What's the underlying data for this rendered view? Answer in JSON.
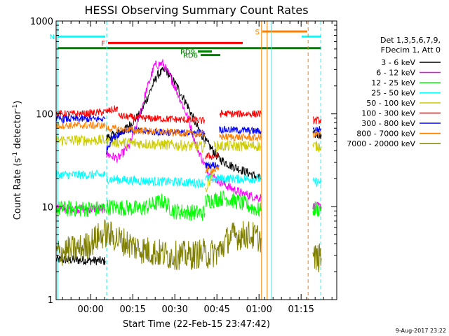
{
  "chart_data": {
    "type": "line",
    "title": "HESSI Observing Summary Count Rates",
    "xlabel": "Start Time (22-Feb-15 23:47:42)",
    "ylabel_main": "Count Rate (s",
    "ylabel_sup1": "-1",
    "ylabel_mid": " detector",
    "ylabel_sup2": "-1",
    "ylabel_end": ")",
    "x_unit": "minutes since 23:47:42",
    "x_range": [
      0,
      100
    ],
    "y_scale": "log",
    "y_range": [
      1,
      1000
    ],
    "x_ticks": [
      {
        "minute": 12.3,
        "label": "00:00"
      },
      {
        "minute": 27.3,
        "label": "00:15"
      },
      {
        "minute": 42.3,
        "label": "00:30"
      },
      {
        "minute": 57.3,
        "label": "00:45"
      },
      {
        "minute": 72.3,
        "label": "01:00"
      },
      {
        "minute": 87.3,
        "label": "01:15"
      }
    ],
    "y_ticks": [
      {
        "value": 1,
        "label": "1"
      },
      {
        "value": 10,
        "label": "10"
      },
      {
        "value": 100,
        "label": "100"
      },
      {
        "value": 1000,
        "label": "1000"
      }
    ],
    "legend": {
      "placement": "right",
      "header": [
        "Det 1,3,5,6,7,9,",
        "FDecim 1, Att 0"
      ],
      "entries": [
        {
          "label": "3 - 6 keV",
          "color": "#000000"
        },
        {
          "label": "6 - 12 keV",
          "color": "#ff00ff"
        },
        {
          "label": "12 - 25 keV",
          "color": "#00ff00"
        },
        {
          "label": "25 - 50 keV",
          "color": "#00ffff"
        },
        {
          "label": "50 - 100 keV",
          "color": "#cccc00"
        },
        {
          "label": "100 - 300 keV",
          "color": "#ff0000"
        },
        {
          "label": "300 - 800 keV",
          "color": "#0000ff"
        },
        {
          "label": "800 - 7000 keV",
          "color": "#ff8000"
        },
        {
          "label": "7000 - 20000 keV",
          "color": "#808000"
        }
      ]
    },
    "flags": [
      {
        "label": "N",
        "color": "#00ffff",
        "start": 0.5,
        "end": 17.5,
        "level": 680
      },
      {
        "label": "F",
        "color": "#ff0000",
        "start": 18.5,
        "end": 66.5,
        "level": 580
      },
      {
        "label": "S",
        "color": "#ff8000",
        "start": 73.5,
        "end": 89.5,
        "level": 770
      },
      {
        "label": "",
        "color": "#00ffff",
        "start": 87.5,
        "end": 94.5,
        "level": 680
      },
      {
        "label": "",
        "color": "#008000",
        "start": 0.5,
        "end": 94.5,
        "level": 510
      },
      {
        "label": "RD9",
        "color": "#008000",
        "start": 50.5,
        "end": 55.5,
        "level": 470
      },
      {
        "label": "RD6",
        "color": "#008000",
        "start": 51.5,
        "end": 58.5,
        "level": 430
      }
    ],
    "vlines": [
      {
        "minute": 0.5,
        "color": "#00ffff",
        "style": "solid"
      },
      {
        "minute": 18.0,
        "color": "#00ffff",
        "style": "dashed"
      },
      {
        "minute": 73.2,
        "color": "#ff8000",
        "style": "solid"
      },
      {
        "minute": 75.2,
        "color": "#ff8000",
        "style": "solid"
      },
      {
        "minute": 76.8,
        "color": "#00ffff",
        "style": "solid"
      },
      {
        "minute": 89.8,
        "color": "#ff8000",
        "style": "dashed"
      },
      {
        "minute": 94.3,
        "color": "#00ffff",
        "style": "dashed"
      }
    ],
    "series": [
      {
        "name": "3 - 6 keV",
        "color": "#000000",
        "noise": 0.05,
        "segments": [
          [
            [
              0,
              2.7
            ],
            [
              17.5,
              2.6
            ]
          ],
          [
            [
              17.8,
              55
            ],
            [
              24,
              65
            ],
            [
              30,
              100
            ],
            [
              34,
              190
            ],
            [
              36,
              260
            ],
            [
              39,
              300
            ],
            [
              43,
              200
            ],
            [
              47,
              120
            ],
            [
              50,
              75
            ],
            [
              53,
              52
            ],
            [
              56,
              40
            ],
            [
              58,
              33
            ],
            [
              62,
              28
            ],
            [
              66,
              25
            ],
            [
              70,
              22
            ],
            [
              73,
              20
            ]
          ],
          [
            [
              91.5,
              60
            ],
            [
              94.5,
              60
            ]
          ]
        ]
      },
      {
        "name": "6 - 12 keV",
        "color": "#ff00ff",
        "noise": 0.05,
        "segments": [
          [
            [
              0,
              9.5
            ],
            [
              17.5,
              9.5
            ]
          ],
          [
            [
              17.8,
              37
            ],
            [
              22,
              33
            ],
            [
              26,
              45
            ],
            [
              29,
              80
            ],
            [
              32,
              170
            ],
            [
              35,
              330
            ],
            [
              38,
              350
            ],
            [
              41,
              240
            ],
            [
              44,
              150
            ],
            [
              47,
              90
            ],
            [
              50,
              45
            ],
            [
              53,
              28
            ],
            [
              55,
              22
            ],
            [
              58,
              19
            ],
            [
              62,
              16
            ],
            [
              66,
              14
            ],
            [
              70,
              13
            ],
            [
              73,
              12.5
            ]
          ],
          [
            [
              91.5,
              10
            ],
            [
              94.5,
              10
            ]
          ]
        ]
      },
      {
        "name": "12 - 25 keV",
        "color": "#00ff00",
        "noise": 0.09,
        "segments": [
          [
            [
              0,
              9.5
            ],
            [
              17.5,
              9.5
            ]
          ],
          [
            [
              17.8,
              10
            ],
            [
              30,
              9.5
            ],
            [
              38,
              11.5
            ],
            [
              42,
              9
            ],
            [
              53,
              8.5
            ]
          ],
          [
            [
              53.2,
              11.5
            ],
            [
              60,
              12.5
            ],
            [
              66,
              11
            ],
            [
              73,
              9
            ]
          ],
          [
            [
              91.5,
              9.5
            ],
            [
              94.5,
              9.5
            ]
          ]
        ]
      },
      {
        "name": "25 - 50 keV",
        "color": "#00ffff",
        "noise": 0.05,
        "segments": [
          [
            [
              0,
              22
            ],
            [
              17.5,
              22
            ]
          ],
          [
            [
              17.8,
              20
            ],
            [
              30,
              19
            ],
            [
              53,
              18
            ]
          ],
          [
            [
              53.2,
              20
            ],
            [
              60,
              20
            ],
            [
              73,
              20
            ]
          ],
          [
            [
              91.5,
              18.5
            ],
            [
              94.5,
              18.5
            ]
          ]
        ]
      },
      {
        "name": "50 - 100 keV",
        "color": "#cccc00",
        "noise": 0.06,
        "segments": [
          [
            [
              0,
              52
            ],
            [
              17.5,
              52
            ]
          ],
          [
            [
              17.8,
              50
            ],
            [
              30,
              48
            ],
            [
              42,
              46
            ],
            [
              53,
              44
            ]
          ],
          [
            [
              53.2,
              15
            ],
            [
              56,
              24
            ]
          ],
          [
            [
              56.2,
              45
            ],
            [
              73,
              45
            ]
          ],
          [
            [
              91.5,
              45
            ],
            [
              94.5,
              45
            ]
          ]
        ]
      },
      {
        "name": "100 - 300 keV",
        "color": "#ff0000",
        "noise": 0.04,
        "segments": [
          [
            [
              0,
              100
            ],
            [
              10,
              100
            ],
            [
              17.5,
              105
            ],
            [
              22,
              115
            ]
          ],
          [
            [
              22.2,
              95
            ],
            [
              30,
              90
            ],
            [
              40,
              88
            ],
            [
              53,
              84
            ]
          ],
          [
            [
              53.2,
              35
            ],
            [
              58,
              35
            ]
          ],
          [
            [
              58.2,
              100
            ],
            [
              73,
              100
            ]
          ],
          [
            [
              91.5,
              85
            ],
            [
              94.5,
              85
            ]
          ]
        ]
      },
      {
        "name": "300 - 800 keV",
        "color": "#0000ff",
        "noise": 0.04,
        "segments": [
          [
            [
              0,
              88
            ],
            [
              17.5,
              88
            ]
          ],
          [
            [
              17.8,
              40
            ],
            [
              20,
              55
            ],
            [
              25,
              68
            ],
            [
              30,
              65
            ],
            [
              40,
              63
            ],
            [
              53,
              62
            ]
          ],
          [
            [
              53.2,
              28
            ],
            [
              58,
              28
            ]
          ],
          [
            [
              58.2,
              68
            ],
            [
              73,
              65
            ]
          ],
          [
            [
              91.5,
              68
            ],
            [
              94.5,
              68
            ]
          ]
        ]
      },
      {
        "name": "800 - 7000 keV",
        "color": "#ff8000",
        "noise": 0.04,
        "segments": [
          [
            [
              0,
              75
            ],
            [
              17.5,
              75
            ]
          ],
          [
            [
              17.8,
              70
            ],
            [
              30,
              66
            ],
            [
              42,
              63
            ],
            [
              53,
              60
            ]
          ],
          [
            [
              53.2,
              25
            ],
            [
              58,
              25
            ]
          ],
          [
            [
              58.2,
              57
            ],
            [
              73,
              55
            ]
          ],
          [
            [
              91.5,
              60
            ],
            [
              94.5,
              60
            ]
          ]
        ]
      },
      {
        "name": "7000 - 20000 keV",
        "color": "#808000",
        "noise": 0.16,
        "segments": [
          [
            [
              0,
              3.2
            ],
            [
              10,
              3.6
            ],
            [
              14,
              4.5
            ],
            [
              17.5,
              5.2
            ],
            [
              22,
              4.5
            ],
            [
              30,
              3.5
            ],
            [
              40,
              3.0
            ],
            [
              48,
              3.0
            ],
            [
              53,
              3.2
            ]
          ],
          [
            [
              53.2,
              3.0
            ],
            [
              58,
              3.3
            ],
            [
              62,
              4.8
            ],
            [
              68,
              5.0
            ],
            [
              73,
              4.6
            ]
          ],
          [
            [
              91.5,
              2.8
            ],
            [
              94.5,
              2.8
            ]
          ]
        ]
      }
    ]
  },
  "footer_stamp": "9-Aug-2017 23:22"
}
